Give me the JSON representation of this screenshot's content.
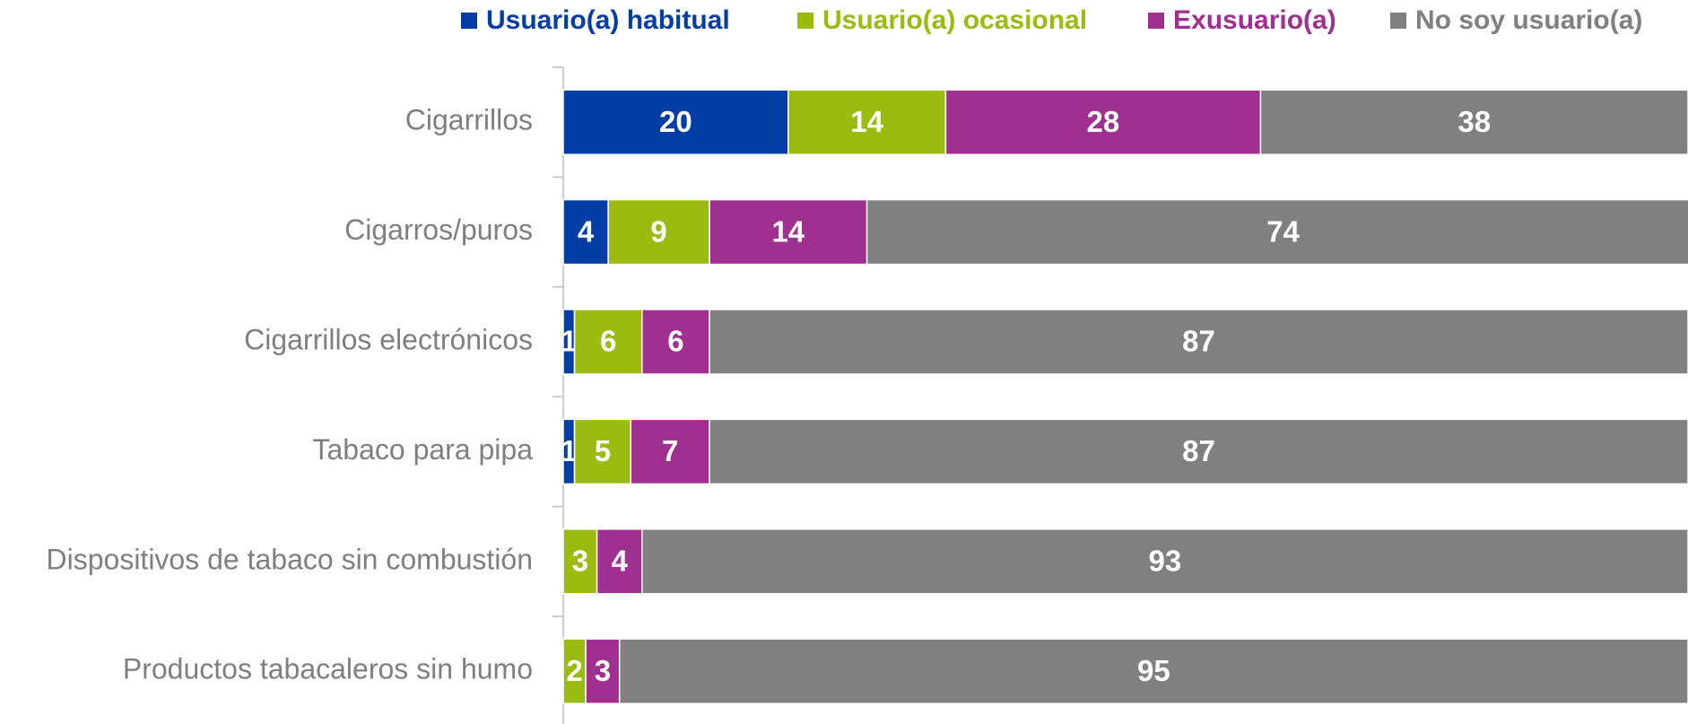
{
  "chart_data": {
    "type": "stacked_bar_horizontal",
    "categories": [
      "Cigarrillos",
      "Cigarros/puros",
      "Cigarrillos electrónicos",
      "Tabaco para pipa",
      "Dispositivos de tabaco sin combustión",
      "Productos tabacaleros sin humo"
    ],
    "series": [
      {
        "name": "Usuario(a) habitual",
        "color": "#003da5",
        "values": [
          20,
          4,
          1,
          1,
          0,
          0
        ]
      },
      {
        "name": "Usuario(a) ocasional",
        "color": "#9bbb11",
        "values": [
          14,
          9,
          6,
          5,
          3,
          2
        ]
      },
      {
        "name": "Exusuario(a)",
        "color": "#a0308f",
        "values": [
          28,
          14,
          6,
          7,
          4,
          3
        ]
      },
      {
        "name": "No soy usuario(a)",
        "color": "#808080",
        "values": [
          38,
          74,
          87,
          87,
          93,
          95
        ]
      }
    ],
    "xlim": [
      0,
      100
    ],
    "legend": "top"
  }
}
